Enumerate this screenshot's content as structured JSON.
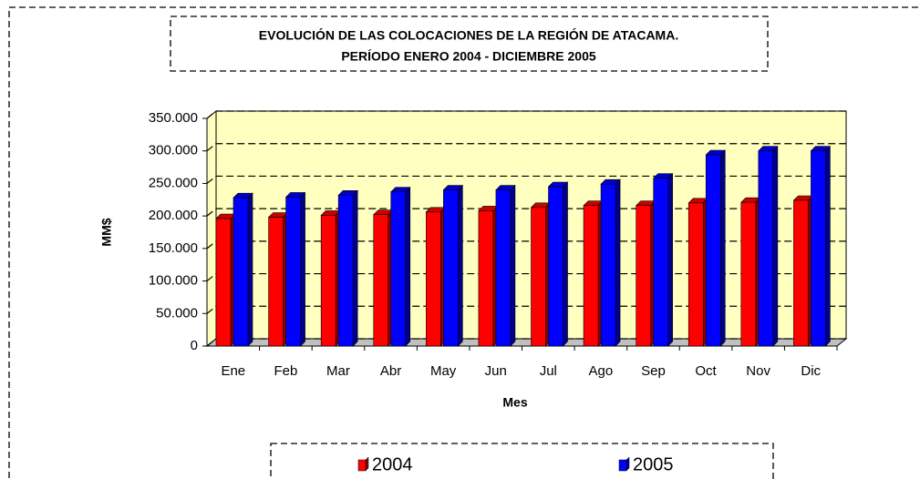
{
  "chart_data": {
    "type": "bar3d",
    "title": "EVOLUCIÓN DE LAS COLOCACIONES DE LA REGIÓN DE ATACAMA.",
    "subtitle": "PERÍODO ENERO 2004 - DICIEMBRE 2005",
    "x_label": "Mes",
    "y_label": "MM$",
    "categories": [
      "Ene",
      "Feb",
      "Mar",
      "Abr",
      "May",
      "Jun",
      "Jul",
      "Ago",
      "Sep",
      "Oct",
      "Nov",
      "Dic"
    ],
    "series": [
      {
        "name": "2004",
        "color": "#ff0000",
        "values": [
          196000,
          198000,
          201000,
          202000,
          206000,
          208000,
          213000,
          216000,
          216000,
          220000,
          221000,
          224000
        ]
      },
      {
        "name": "2005",
        "color": "#0000ff",
        "values": [
          228000,
          229000,
          232000,
          237000,
          240000,
          240000,
          245000,
          249000,
          258000,
          294000,
          300000,
          300000
        ]
      }
    ],
    "ylim": [
      0,
      350000
    ],
    "yticks": [
      0,
      {
        "value": 50000,
        "label": "50.000"
      },
      {
        "value": 100000,
        "label": "100.000"
      },
      {
        "value": 150000,
        "label": "150.000"
      },
      {
        "value": 200000,
        "label": "200.000"
      },
      {
        "value": 250000,
        "label": "250.000"
      },
      {
        "value": 300000,
        "label": "300.000"
      },
      {
        "value": 350000,
        "label": "350.000"
      }
    ],
    "grid": true,
    "wall_color": "#ffffc0"
  }
}
